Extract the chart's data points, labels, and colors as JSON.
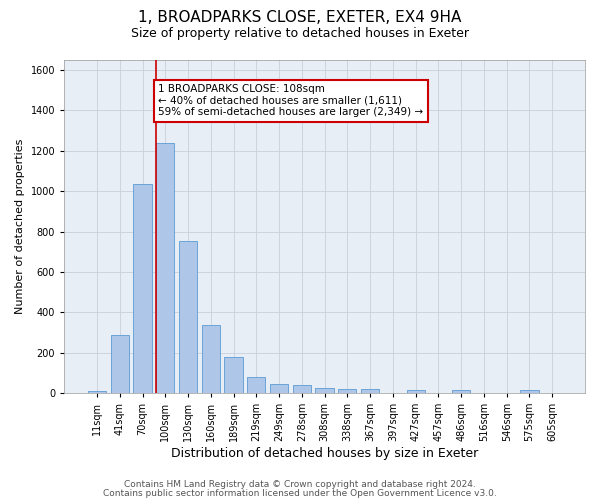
{
  "title1": "1, BROADPARKS CLOSE, EXETER, EX4 9HA",
  "title2": "Size of property relative to detached houses in Exeter",
  "xlabel": "Distribution of detached houses by size in Exeter",
  "ylabel": "Number of detached properties",
  "categories": [
    "11sqm",
    "41sqm",
    "70sqm",
    "100sqm",
    "130sqm",
    "160sqm",
    "189sqm",
    "219sqm",
    "249sqm",
    "278sqm",
    "308sqm",
    "338sqm",
    "367sqm",
    "397sqm",
    "427sqm",
    "457sqm",
    "486sqm",
    "516sqm",
    "546sqm",
    "575sqm",
    "605sqm"
  ],
  "values": [
    10,
    285,
    1035,
    1240,
    755,
    335,
    180,
    80,
    45,
    38,
    25,
    18,
    18,
    0,
    12,
    0,
    12,
    0,
    0,
    12,
    0
  ],
  "bar_color": "#aec6e8",
  "bar_edge_color": "#5b9bd5",
  "vline_bin_index": 3,
  "annotation_text": "1 BROADPARKS CLOSE: 108sqm\n← 40% of detached houses are smaller (1,611)\n59% of semi-detached houses are larger (2,349) →",
  "annotation_box_color": "#ffffff",
  "annotation_box_edge_color": "#cc0000",
  "vline_color": "#cc0000",
  "ylim": [
    0,
    1650
  ],
  "yticks": [
    0,
    200,
    400,
    600,
    800,
    1000,
    1200,
    1400,
    1600
  ],
  "grid_color": "#c8d0dc",
  "bg_color": "#e8eef5",
  "footer1": "Contains HM Land Registry data © Crown copyright and database right 2024.",
  "footer2": "Contains public sector information licensed under the Open Government Licence v3.0.",
  "title1_fontsize": 11,
  "title2_fontsize": 9,
  "xlabel_fontsize": 9,
  "ylabel_fontsize": 8,
  "tick_fontsize": 7,
  "footer_fontsize": 6.5,
  "annotation_fontsize": 7.5
}
